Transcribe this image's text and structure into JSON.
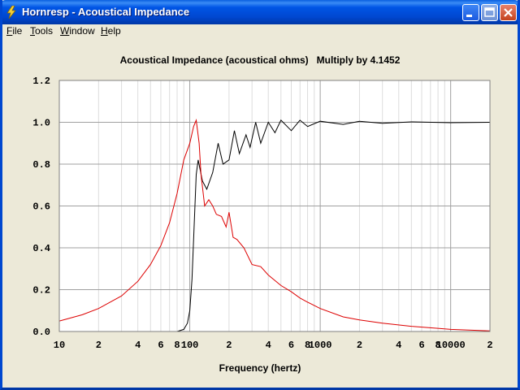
{
  "window": {
    "title": "Hornresp - Acoustical Impedance"
  },
  "menu": [
    {
      "key": "F",
      "rest": "ile"
    },
    {
      "key": "T",
      "rest": "ools"
    },
    {
      "key": "W",
      "rest": "indow"
    },
    {
      "key": "H",
      "rest": "elp"
    }
  ],
  "colors": {
    "real_part": "#000000",
    "imag_part": "#dd0000",
    "grid": "#c0c0c0",
    "background": "#ffffff"
  },
  "chart_data": {
    "type": "line",
    "title": "Acoustical Impedance (acoustical ohms)   Multiply by 4.1452",
    "xlabel": "Frequency (hertz)",
    "ylabel": "",
    "x_scale": "log",
    "xlim": [
      10,
      20000
    ],
    "ylim": [
      0,
      1.2
    ],
    "x_tick_labels": [
      {
        "value": 10,
        "label": "10"
      },
      {
        "value": 20,
        "label": "2"
      },
      {
        "value": 40,
        "label": "4"
      },
      {
        "value": 60,
        "label": "6"
      },
      {
        "value": 80,
        "label": "8"
      },
      {
        "value": 100,
        "label": "100"
      },
      {
        "value": 200,
        "label": "2"
      },
      {
        "value": 400,
        "label": "4"
      },
      {
        "value": 600,
        "label": "6"
      },
      {
        "value": 800,
        "label": "8"
      },
      {
        "value": 1000,
        "label": "1000"
      },
      {
        "value": 2000,
        "label": "2"
      },
      {
        "value": 4000,
        "label": "4"
      },
      {
        "value": 6000,
        "label": "6"
      },
      {
        "value": 8000,
        "label": "8"
      },
      {
        "value": 10000,
        "label": "10000"
      },
      {
        "value": 20000,
        "label": "2"
      }
    ],
    "y_tick_labels": [
      "0.0",
      "0.2",
      "0.4",
      "0.6",
      "0.8",
      "1.0",
      "1.2"
    ],
    "grid": true,
    "series": [
      {
        "color": "#000000",
        "points": [
          [
            60,
            0
          ],
          [
            80,
            0
          ],
          [
            90,
            0.01
          ],
          [
            96,
            0.04
          ],
          [
            100,
            0.1
          ],
          [
            104,
            0.25
          ],
          [
            108,
            0.5
          ],
          [
            112,
            0.75
          ],
          [
            116,
            0.82
          ],
          [
            125,
            0.72
          ],
          [
            135,
            0.68
          ],
          [
            150,
            0.76
          ],
          [
            165,
            0.9
          ],
          [
            180,
            0.8
          ],
          [
            200,
            0.82
          ],
          [
            220,
            0.96
          ],
          [
            240,
            0.85
          ],
          [
            270,
            0.94
          ],
          [
            290,
            0.88
          ],
          [
            320,
            1.0
          ],
          [
            350,
            0.9
          ],
          [
            400,
            1.0
          ],
          [
            450,
            0.95
          ],
          [
            500,
            1.01
          ],
          [
            600,
            0.96
          ],
          [
            700,
            1.01
          ],
          [
            800,
            0.98
          ],
          [
            1000,
            1.005
          ],
          [
            1500,
            0.99
          ],
          [
            2000,
            1.005
          ],
          [
            3000,
            0.995
          ],
          [
            5000,
            1.002
          ],
          [
            10000,
            0.998
          ],
          [
            20000,
            1.0
          ]
        ]
      },
      {
        "color": "#dd0000",
        "points": [
          [
            10,
            0.05
          ],
          [
            15,
            0.08
          ],
          [
            20,
            0.11
          ],
          [
            30,
            0.17
          ],
          [
            40,
            0.24
          ],
          [
            50,
            0.32
          ],
          [
            60,
            0.41
          ],
          [
            70,
            0.52
          ],
          [
            80,
            0.66
          ],
          [
            90,
            0.82
          ],
          [
            100,
            0.9
          ],
          [
            107,
            0.98
          ],
          [
            112,
            1.01
          ],
          [
            118,
            0.9
          ],
          [
            122,
            0.75
          ],
          [
            130,
            0.6
          ],
          [
            140,
            0.63
          ],
          [
            150,
            0.6
          ],
          [
            160,
            0.56
          ],
          [
            175,
            0.55
          ],
          [
            190,
            0.5
          ],
          [
            200,
            0.57
          ],
          [
            215,
            0.45
          ],
          [
            230,
            0.44
          ],
          [
            260,
            0.4
          ],
          [
            300,
            0.32
          ],
          [
            350,
            0.31
          ],
          [
            400,
            0.27
          ],
          [
            500,
            0.22
          ],
          [
            600,
            0.19
          ],
          [
            700,
            0.16
          ],
          [
            800,
            0.14
          ],
          [
            1000,
            0.11
          ],
          [
            1500,
            0.07
          ],
          [
            2000,
            0.055
          ],
          [
            3000,
            0.04
          ],
          [
            5000,
            0.025
          ],
          [
            8000,
            0.015
          ],
          [
            10000,
            0.01
          ],
          [
            20000,
            0.003
          ]
        ]
      }
    ]
  }
}
